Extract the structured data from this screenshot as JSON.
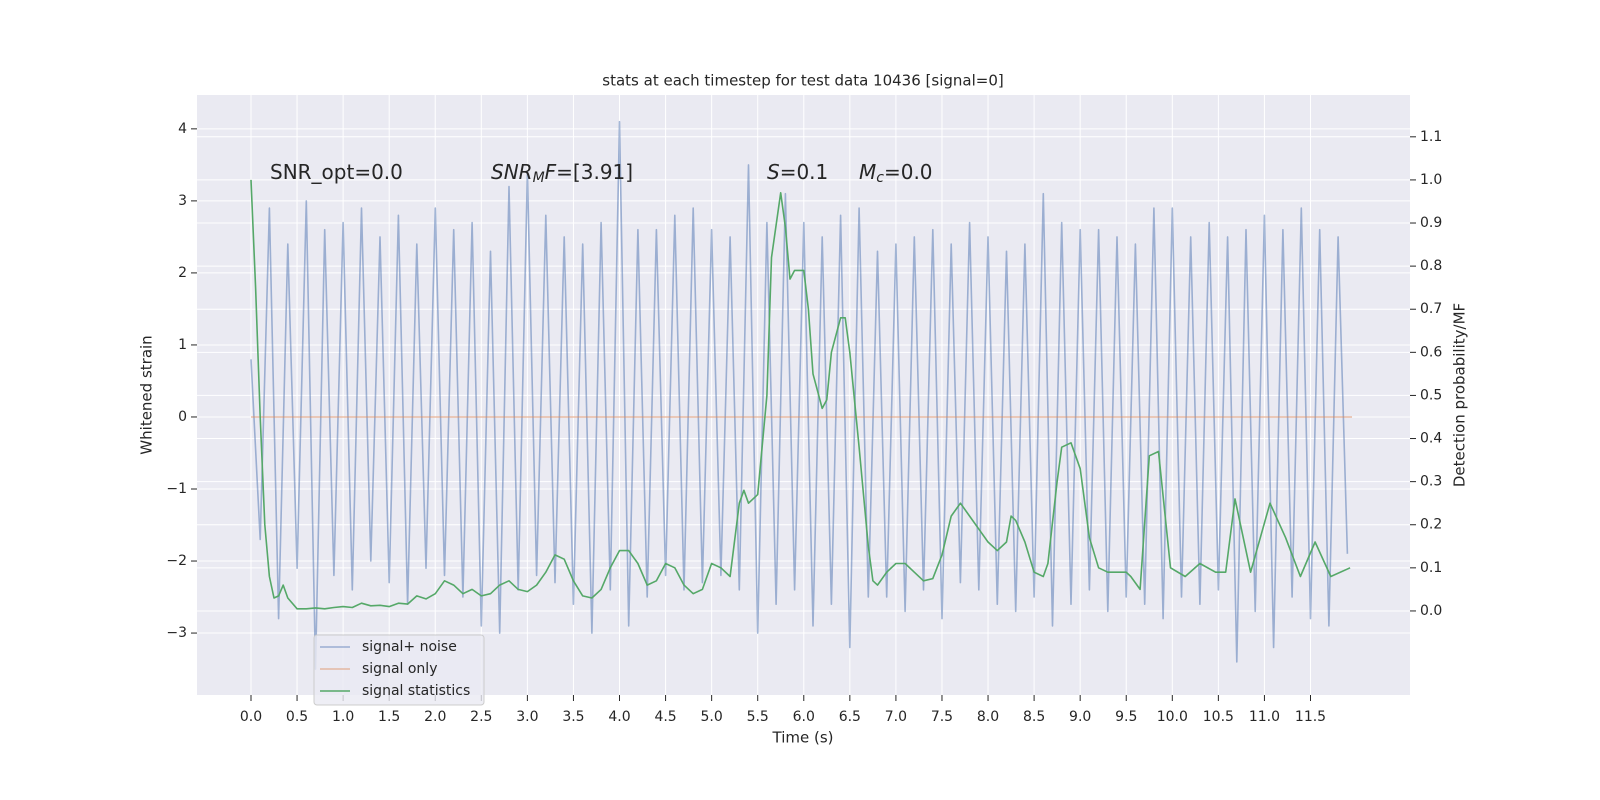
{
  "chart_data": {
    "type": "line",
    "title": "stats at each timestep for test data 10436 [signal=0]",
    "xlabel": "Time (s)",
    "ylabel": "Whitened strain",
    "y2label": "Detection probability/MF",
    "xlim": [
      -0.586,
      12.58
    ],
    "ylim": [
      -3.86,
      4.47
    ],
    "y2lim": [
      -0.195,
      1.197
    ],
    "xticks": [
      {
        "value": 0,
        "label": "0.0"
      },
      0.5,
      {
        "value": 1,
        "label": "1.0"
      },
      1.5,
      {
        "value": 2,
        "label": "2.0"
      },
      2.5,
      {
        "value": 3,
        "label": "3.0"
      },
      3.5,
      {
        "value": 4,
        "label": "4.0"
      },
      4.5,
      {
        "value": 5,
        "label": "5.0"
      },
      5.5,
      {
        "value": 6,
        "label": "6.0"
      },
      6.5,
      {
        "value": 7,
        "label": "7.0"
      },
      7.5,
      {
        "value": 8,
        "label": "8.0"
      },
      8.5,
      {
        "value": 9,
        "label": "9.0"
      },
      9.5,
      {
        "value": 10,
        "label": "10.0"
      },
      10.5,
      {
        "value": 11,
        "label": "11.0"
      },
      11.5
    ],
    "yticks": [
      {
        "value": -3,
        "label": "−3"
      },
      {
        "value": -2,
        "label": "−2"
      },
      {
        "value": -1,
        "label": "−1"
      },
      0,
      1,
      2,
      3,
      4
    ],
    "y2ticks": [
      {
        "value": 0,
        "label": "0.0"
      },
      0.1,
      0.2,
      0.3,
      0.4,
      0.5,
      0.6,
      0.7,
      0.8,
      0.9,
      {
        "value": 1,
        "label": "1.0"
      },
      1.1
    ],
    "grid": true,
    "annotations": [
      {
        "parts": [
          {
            "text": "SNR_opt=0.0"
          }
        ]
      },
      {
        "parts": [
          {
            "text": "SNR",
            "italic": true
          },
          {
            "text": "M",
            "italic": true,
            "sub": true
          },
          {
            "text": "F",
            "italic": true
          },
          {
            "text": "=[3.91]"
          }
        ]
      },
      {
        "parts": [
          {
            "text": "S",
            "italic": true
          },
          {
            "text": "=0.1"
          }
        ]
      },
      {
        "parts": [
          {
            "text": "M",
            "italic": true
          },
          {
            "text": "c",
            "italic": true,
            "sub": true
          },
          {
            "text": "=0.0"
          }
        ]
      }
    ],
    "series": [
      {
        "name": "signal+ noise",
        "color": "#4c72b0",
        "opacity": 0.5,
        "x": [
          0.0,
          0.1,
          0.2,
          0.3,
          0.4,
          0.5,
          0.6,
          0.7,
          0.8,
          0.9,
          1.0,
          1.1,
          1.2,
          1.3,
          1.4,
          1.5,
          1.6,
          1.7,
          1.8,
          1.9,
          2.0,
          2.1,
          2.2,
          2.3,
          2.4,
          2.5,
          2.6,
          2.7,
          2.8,
          2.9,
          3.0,
          3.1,
          3.2,
          3.3,
          3.4,
          3.5,
          3.6,
          3.7,
          3.8,
          3.9,
          4.0,
          4.1,
          4.2,
          4.3,
          4.4,
          4.5,
          4.6,
          4.7,
          4.8,
          4.9,
          5.0,
          5.1,
          5.2,
          5.3,
          5.4,
          5.5,
          5.6,
          5.7,
          5.8,
          5.9,
          6.0,
          6.1,
          6.2,
          6.3,
          6.4,
          6.5,
          6.6,
          6.7,
          6.8,
          6.9,
          7.0,
          7.1,
          7.2,
          7.3,
          7.4,
          7.5,
          7.6,
          7.7,
          7.8,
          7.9,
          8.0,
          8.1,
          8.2,
          8.3,
          8.4,
          8.5,
          8.6,
          8.7,
          8.8,
          8.9,
          9.0,
          9.1,
          9.2,
          9.3,
          9.4,
          9.5,
          9.6,
          9.7,
          9.8,
          9.9,
          10.0,
          10.1,
          10.2,
          10.3,
          10.4,
          10.5,
          10.6,
          10.7,
          10.8,
          10.9,
          11.0,
          11.1,
          11.2,
          11.3,
          11.4,
          11.5,
          11.6,
          11.7,
          11.8,
          11.9
        ],
        "values": [
          0.8,
          -1.7,
          2.9,
          -2.8,
          2.4,
          -2.1,
          3.0,
          -3.5,
          2.6,
          -2.2,
          2.7,
          -2.4,
          2.9,
          -2.0,
          2.5,
          -2.3,
          2.8,
          -2.6,
          2.4,
          -2.1,
          2.9,
          -2.2,
          2.6,
          -2.5,
          2.7,
          -2.9,
          2.3,
          -3.0,
          3.2,
          -2.4,
          3.4,
          -2.2,
          2.8,
          -2.3,
          2.5,
          -2.6,
          2.4,
          -3.0,
          2.7,
          -2.4,
          4.1,
          -2.9,
          2.6,
          -2.5,
          2.6,
          -2.2,
          2.8,
          -2.4,
          2.9,
          -2.3,
          2.6,
          -2.2,
          2.5,
          -2.4,
          3.5,
          -3.0,
          2.7,
          -2.6,
          3.1,
          -2.4,
          2.7,
          -2.9,
          2.5,
          -2.6,
          2.8,
          -3.2,
          2.9,
          -2.5,
          2.3,
          -2.5,
          2.4,
          -2.7,
          2.5,
          -2.4,
          2.6,
          -2.8,
          2.4,
          -2.3,
          2.7,
          -2.4,
          2.5,
          -2.6,
          2.3,
          -2.7,
          2.4,
          -2.5,
          3.1,
          -2.9,
          2.7,
          -2.6,
          2.6,
          -2.4,
          2.6,
          -2.7,
          2.5,
          -2.5,
          2.4,
          -2.6,
          2.9,
          -2.8,
          2.9,
          -2.5,
          2.5,
          -2.6,
          2.7,
          -2.4,
          2.5,
          -3.4,
          2.6,
          -2.7,
          2.8,
          -3.2,
          2.6,
          -2.5,
          2.9,
          -2.8,
          2.6,
          -2.9,
          2.5,
          -1.9
        ]
      },
      {
        "name": "signal only",
        "color": "#dd8452",
        "opacity": 0.5,
        "x": [
          0.0,
          11.95
        ],
        "values": [
          0,
          0
        ]
      },
      {
        "name": "signal statistics",
        "color": "#55a868",
        "opacity": 1,
        "axis": "y2",
        "x": [
          0.0,
          0.05,
          0.1,
          0.15,
          0.2,
          0.25,
          0.3,
          0.35,
          0.4,
          0.5,
          0.6,
          0.7,
          0.8,
          0.9,
          1.0,
          1.1,
          1.2,
          1.3,
          1.4,
          1.5,
          1.6,
          1.7,
          1.8,
          1.9,
          2.0,
          2.1,
          2.2,
          2.3,
          2.4,
          2.5,
          2.6,
          2.7,
          2.8,
          2.9,
          3.0,
          3.1,
          3.2,
          3.3,
          3.4,
          3.5,
          3.6,
          3.7,
          3.8,
          3.9,
          4.0,
          4.1,
          4.2,
          4.3,
          4.4,
          4.5,
          4.6,
          4.7,
          4.8,
          4.9,
          5.0,
          5.1,
          5.2,
          5.3,
          5.35,
          5.4,
          5.5,
          5.6,
          5.65,
          5.75,
          5.8,
          5.85,
          5.9,
          6.0,
          6.05,
          6.1,
          6.2,
          6.25,
          6.3,
          6.4,
          6.45,
          6.5,
          6.6,
          6.7,
          6.75,
          6.8,
          6.9,
          7.0,
          7.1,
          7.2,
          7.3,
          7.4,
          7.5,
          7.6,
          7.7,
          7.8,
          7.9,
          8.0,
          8.1,
          8.2,
          8.25,
          8.3,
          8.4,
          8.5,
          8.6,
          8.65,
          8.75,
          8.8,
          8.9,
          9.0,
          9.1,
          9.2,
          9.3,
          9.5,
          9.55,
          9.65,
          9.75,
          9.85,
          9.98,
          10.14,
          10.3,
          10.47,
          10.58,
          10.68,
          10.85,
          11.06,
          11.23,
          11.39,
          11.55,
          11.72,
          11.93
        ],
        "values": [
          1.0,
          0.75,
          0.45,
          0.2,
          0.08,
          0.03,
          0.035,
          0.06,
          0.03,
          0.005,
          0.005,
          0.007,
          0.005,
          0.008,
          0.01,
          0.008,
          0.018,
          0.012,
          0.013,
          0.01,
          0.018,
          0.016,
          0.035,
          0.028,
          0.04,
          0.07,
          0.06,
          0.04,
          0.05,
          0.035,
          0.04,
          0.06,
          0.07,
          0.05,
          0.045,
          0.06,
          0.09,
          0.13,
          0.12,
          0.07,
          0.035,
          0.03,
          0.05,
          0.1,
          0.14,
          0.14,
          0.11,
          0.06,
          0.07,
          0.11,
          0.1,
          0.06,
          0.04,
          0.05,
          0.11,
          0.1,
          0.08,
          0.25,
          0.28,
          0.25,
          0.27,
          0.5,
          0.82,
          0.97,
          0.89,
          0.77,
          0.79,
          0.79,
          0.7,
          0.55,
          0.47,
          0.49,
          0.6,
          0.68,
          0.68,
          0.6,
          0.38,
          0.15,
          0.07,
          0.06,
          0.09,
          0.11,
          0.11,
          0.09,
          0.07,
          0.075,
          0.13,
          0.22,
          0.25,
          0.22,
          0.19,
          0.16,
          0.14,
          0.16,
          0.22,
          0.21,
          0.16,
          0.09,
          0.08,
          0.11,
          0.3,
          0.38,
          0.39,
          0.33,
          0.17,
          0.1,
          0.09,
          0.09,
          0.08,
          0.05,
          0.36,
          0.37,
          0.1,
          0.08,
          0.11,
          0.09,
          0.09,
          0.26,
          0.09,
          0.25,
          0.17,
          0.08,
          0.16,
          0.08,
          0.1
        ]
      }
    ]
  }
}
